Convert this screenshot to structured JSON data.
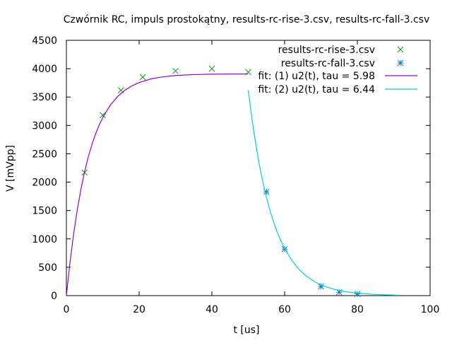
{
  "chart_data": {
    "type": "scatter",
    "title": "Czwórnik RC, impuls prostokątny, results-rc-rise-3.csv, results-rc-fall-3.csv",
    "xlabel": "t [us]",
    "ylabel": "V [mVpp]",
    "xlim": [
      0,
      100
    ],
    "ylim": [
      0,
      4500
    ],
    "x_ticks": [
      0,
      20,
      40,
      60,
      80,
      100
    ],
    "y_ticks": [
      0,
      500,
      1000,
      1500,
      2000,
      2500,
      3000,
      3500,
      4000,
      4500
    ],
    "grid": false,
    "legend_position": "top-right",
    "series": [
      {
        "name": "results-rc-rise-3.csv",
        "kind": "points",
        "marker": "x",
        "color": "#009e00",
        "points": [
          [
            5,
            2170
          ],
          [
            10,
            3180
          ],
          [
            15,
            3620
          ],
          [
            21,
            3850
          ],
          [
            30,
            3960
          ],
          [
            40,
            4000
          ],
          [
            50,
            3940
          ]
        ]
      },
      {
        "name": "results-rc-fall-3.csv",
        "kind": "points",
        "marker": "asterisk",
        "color": "#0080c0",
        "points": [
          [
            55,
            1830
          ],
          [
            60,
            820
          ],
          [
            70,
            160
          ],
          [
            75,
            60
          ],
          [
            80,
            30
          ]
        ]
      },
      {
        "name": "fit: (1) u2(t), tau = 5.98",
        "kind": "line",
        "color": "#9400d3",
        "points": [
          [
            0,
            0
          ],
          [
            1,
            609
          ],
          [
            2,
            1125
          ],
          [
            3,
            1563
          ],
          [
            4,
            1934
          ],
          [
            5,
            2250
          ],
          [
            6,
            2517
          ],
          [
            7,
            2744
          ],
          [
            8,
            2936
          ],
          [
            9,
            3099
          ],
          [
            10,
            3237
          ],
          [
            12,
            3458
          ],
          [
            14,
            3617
          ],
          [
            16,
            3732
          ],
          [
            18,
            3815
          ],
          [
            20,
            3875
          ],
          [
            23,
            3938
          ],
          [
            26,
            3974
          ],
          [
            30,
            4004
          ],
          [
            35,
            4021
          ],
          [
            40,
            4028
          ],
          [
            45,
            4031
          ],
          [
            50,
            4032
          ]
        ],
        "display_scale": 0.969
      },
      {
        "name": "fit: (2) u2(t), tau = 6.44",
        "kind": "line",
        "color": "#00d0d0",
        "points": [
          [
            50,
            3620
          ],
          [
            51,
            3125
          ],
          [
            52,
            2696
          ],
          [
            53,
            2327
          ],
          [
            54,
            2008
          ],
          [
            55,
            1733
          ],
          [
            56,
            1495
          ],
          [
            57,
            1291
          ],
          [
            58,
            1114
          ],
          [
            59,
            961
          ],
          [
            60,
            829
          ],
          [
            62,
            618
          ],
          [
            64,
            460
          ],
          [
            66,
            343
          ],
          [
            68,
            255
          ],
          [
            70,
            190
          ],
          [
            72,
            142
          ],
          [
            74,
            106
          ],
          [
            76,
            79
          ],
          [
            78,
            59
          ],
          [
            80,
            44
          ],
          [
            84,
            24
          ],
          [
            88,
            13
          ],
          [
            91,
            8
          ]
        ]
      }
    ]
  }
}
